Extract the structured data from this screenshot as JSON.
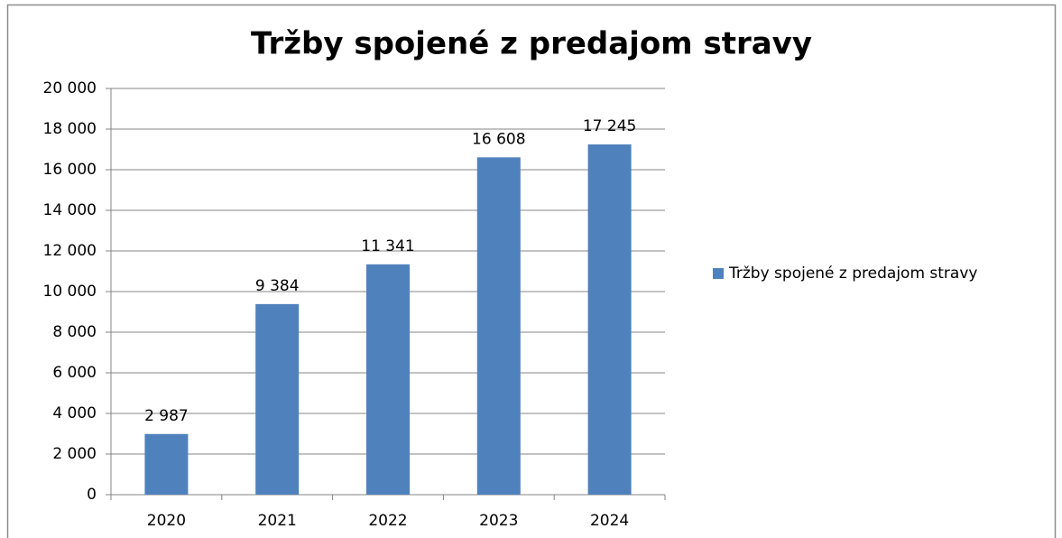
{
  "chart_data": {
    "type": "bar",
    "title": "Tržby spojené z predajom stravy",
    "categories": [
      "2020",
      "2021",
      "2022",
      "2023",
      "2024"
    ],
    "series": [
      {
        "name": "Tržby spojené z predajom stravy",
        "color": "#4f81bd",
        "values": [
          2987,
          9384,
          11341,
          16608,
          17245
        ],
        "value_labels": [
          "2 987",
          "9 384",
          "11 341",
          "16 608",
          "17 245"
        ]
      }
    ],
    "ylim": [
      0,
      20000
    ],
    "yticks": [
      0,
      {
        "value": 2000,
        "label": "2 000"
      },
      {
        "value": 4000,
        "label": "4 000"
      },
      {
        "value": 6000,
        "label": "6 000"
      },
      {
        "value": 8000,
        "label": "8 000"
      },
      {
        "value": 10000,
        "label": "10 000"
      },
      {
        "value": 12000,
        "label": "12 000"
      },
      {
        "value": 14000,
        "label": "14 000"
      },
      {
        "value": 16000,
        "label": "16 000"
      },
      {
        "value": 18000,
        "label": "18 000"
      },
      {
        "value": 20000,
        "label": "20 000"
      }
    ],
    "grid": true,
    "legend": "right"
  }
}
